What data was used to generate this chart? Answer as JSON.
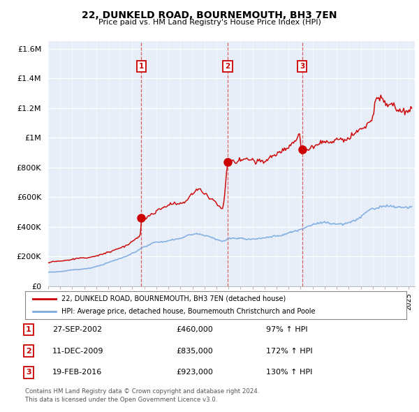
{
  "title": "22, DUNKELD ROAD, BOURNEMOUTH, BH3 7EN",
  "subtitle": "Price paid vs. HM Land Registry's House Price Index (HPI)",
  "ylabel_ticks": [
    "£0",
    "£200K",
    "£400K",
    "£600K",
    "£800K",
    "£1M",
    "£1.2M",
    "£1.4M",
    "£1.6M"
  ],
  "ytick_values": [
    0,
    200000,
    400000,
    600000,
    800000,
    1000000,
    1200000,
    1400000,
    1600000
  ],
  "ylim": [
    0,
    1650000
  ],
  "xlim_start": 1995.0,
  "xlim_end": 2025.5,
  "transactions": [
    {
      "num": 1,
      "date_label": "27-SEP-2002",
      "x": 2002.75,
      "price": 460000,
      "pct": "97%",
      "arrow": "↑"
    },
    {
      "num": 2,
      "date_label": "11-DEC-2009",
      "x": 2009.92,
      "price": 835000,
      "pct": "172%",
      "arrow": "↑"
    },
    {
      "num": 3,
      "date_label": "19-FEB-2016",
      "x": 2016.12,
      "price": 923000,
      "pct": "130%",
      "arrow": "↑"
    }
  ],
  "legend_line1": "22, DUNKELD ROAD, BOURNEMOUTH, BH3 7EN (detached house)",
  "legend_line2": "HPI: Average price, detached house, Bournemouth Christchurch and Poole",
  "footer1": "Contains HM Land Registry data © Crown copyright and database right 2024.",
  "footer2": "This data is licensed under the Open Government Licence v3.0.",
  "red_color": "#cc0000",
  "blue_color": "#7aabe0",
  "vline_color": "#cc0000",
  "plot_bg": "#e8eef8"
}
